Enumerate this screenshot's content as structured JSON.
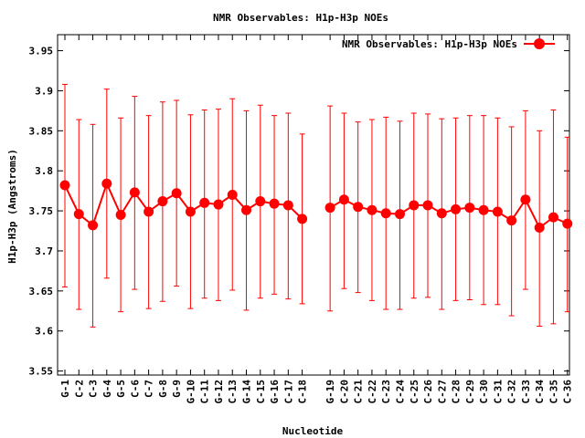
{
  "chart_data": {
    "type": "line",
    "title": "NMR Observables: H1p-H3p NOEs",
    "xlabel": "Nucleotide",
    "ylabel": "H1p-H3p (Angstroms)",
    "ylim": [
      3.545,
      3.97
    ],
    "yticks": [
      "3.55",
      "3.6",
      "3.65",
      "3.7",
      "3.75",
      "3.8",
      "3.85",
      "3.9",
      "3.95"
    ],
    "grid": false,
    "legend_position": "top-right",
    "color": "#ff0000",
    "series": [
      {
        "name": "NMR Observables: H1p-H3p NOEs",
        "segments": [
          {
            "categories": [
              "G-1",
              "C-2",
              "C-3",
              "G-4",
              "G-5",
              "C-6",
              "C-7",
              "G-8",
              "G-9",
              "G-10",
              "C-11",
              "G-12",
              "C-13",
              "G-14",
              "C-15",
              "G-16",
              "C-17",
              "C-18"
            ],
            "values": [
              3.782,
              3.746,
              3.732,
              3.784,
              3.745,
              3.773,
              3.749,
              3.762,
              3.772,
              3.749,
              3.76,
              3.758,
              3.77,
              3.751,
              3.762,
              3.759,
              3.757,
              3.74
            ],
            "error_low": [
              3.655,
              3.627,
              3.605,
              3.666,
              3.624,
              3.652,
              3.628,
              3.637,
              3.656,
              3.628,
              3.641,
              3.638,
              3.651,
              3.626,
              3.641,
              3.646,
              3.64,
              3.634
            ],
            "error_high": [
              3.908,
              3.864,
              3.858,
              3.902,
              3.866,
              3.893,
              3.869,
              3.886,
              3.888,
              3.87,
              3.876,
              3.877,
              3.89,
              3.875,
              3.882,
              3.869,
              3.872,
              3.846
            ]
          },
          {
            "categories": [
              "G-19",
              "C-20",
              "C-21",
              "C-22",
              "C-23",
              "C-24",
              "C-25",
              "C-26",
              "C-27",
              "C-28",
              "C-29",
              "C-30",
              "C-31",
              "C-32",
              "C-33",
              "C-34",
              "C-35",
              "C-36"
            ],
            "values": [
              3.754,
              3.764,
              3.755,
              3.751,
              3.747,
              3.746,
              3.757,
              3.757,
              3.747,
              3.752,
              3.754,
              3.751,
              3.749,
              3.738,
              3.764,
              3.729,
              3.742,
              3.734
            ],
            "error_low": [
              3.625,
              3.653,
              3.648,
              3.638,
              3.627,
              3.627,
              3.641,
              3.642,
              3.627,
              3.638,
              3.639,
              3.633,
              3.633,
              3.619,
              3.652,
              3.606,
              3.609,
              3.624
            ],
            "error_high": [
              3.881,
              3.872,
              3.861,
              3.864,
              3.867,
              3.862,
              3.872,
              3.871,
              3.865,
              3.866,
              3.869,
              3.869,
              3.866,
              3.855,
              3.875,
              3.85,
              3.876,
              3.842
            ]
          }
        ]
      }
    ]
  }
}
